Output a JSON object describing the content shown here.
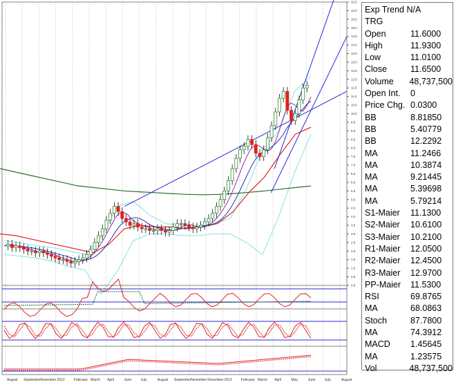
{
  "info_panel": {
    "title": "Exp Trend N/A",
    "symbol": "TRG",
    "rows": [
      {
        "label": "Open",
        "value": "11.6000"
      },
      {
        "label": "High",
        "value": "11.9300"
      },
      {
        "label": "Low",
        "value": "11.0100"
      },
      {
        "label": "Close",
        "value": "11.6500"
      },
      {
        "label": "Volume",
        "value": "48,737,500"
      },
      {
        "label": "Open Int.",
        "value": "0"
      },
      {
        "label": "Price Chg.",
        "value": "0.0300"
      },
      {
        "label": "BB",
        "value": "8.81850"
      },
      {
        "label": "BB",
        "value": "5.40779"
      },
      {
        "label": "BB",
        "value": "12.2292"
      },
      {
        "label": "MA",
        "value": "11.2466"
      },
      {
        "label": "MA",
        "value": "10.3874"
      },
      {
        "label": "MA",
        "value": "9.21445"
      },
      {
        "label": "MA",
        "value": "5.39698"
      },
      {
        "label": "MA",
        "value": "5.79214"
      },
      {
        "label": "S1-Maier",
        "value": "11.1300"
      },
      {
        "label": "S2-Maier",
        "value": "10.6100"
      },
      {
        "label": "S3-Maier",
        "value": "10.2100"
      },
      {
        "label": "R1-Maier",
        "value": "12.0500"
      },
      {
        "label": "R2-Maier",
        "value": "12.4500"
      },
      {
        "label": "R3-Maier",
        "value": "12.9700"
      },
      {
        "label": "PP-Maier",
        "value": "11.5300"
      },
      {
        "label": "RSI",
        "value": "69.8765"
      },
      {
        "label": "MA",
        "value": "68.0863"
      },
      {
        "label": "Stoch",
        "value": "87.7800"
      },
      {
        "label": "MA",
        "value": "74.3912"
      },
      {
        "label": "MACD",
        "value": "1.45645"
      },
      {
        "label": "MA",
        "value": "1.23575"
      },
      {
        "label": "Vol",
        "value": "48,737,500"
      }
    ]
  },
  "chart_data": [
    {
      "type": "candlestick",
      "panel": "price",
      "y_ticks": [
        "16.5",
        "16.0",
        "15.5",
        "15.0",
        "14.5",
        "14.0",
        "13.5",
        "13.0",
        "12.5",
        "12.0",
        "11.5",
        "11.0",
        "10.5",
        "10.0",
        "9.5",
        "9.0",
        "8.5",
        "8.0",
        "7.5",
        "7.0",
        "6.5",
        "6.0",
        "5.5",
        "5.0",
        "4.5",
        "4.0",
        "3.5",
        "3.0",
        "2.5",
        "2.0",
        "1.5",
        "1.0",
        "0.5",
        "0.0"
      ],
      "ylim": [
        0,
        16.5
      ],
      "x_ticks": [
        "August",
        "September",
        "November",
        "2012",
        "February",
        "March",
        "April",
        "June",
        "July",
        "August",
        "September",
        "November",
        "December",
        "2013",
        "February",
        "March",
        "April",
        "May",
        "June",
        "July",
        "August"
      ],
      "closes": [
        2.3,
        2.4,
        2.2,
        2.3,
        2.2,
        2.1,
        2.0,
        2.0,
        1.9,
        2.0,
        1.9,
        1.8,
        1.7,
        1.6,
        1.5,
        1.5,
        1.4,
        1.3,
        1.4,
        1.5,
        1.6,
        1.8,
        2.1,
        2.5,
        2.9,
        3.3,
        3.8,
        4.2,
        4.6,
        4.3,
        3.9,
        3.7,
        3.5,
        3.6,
        3.4,
        3.3,
        3.3,
        3.2,
        3.2,
        3.3,
        3.2,
        3.1,
        3.2,
        3.4,
        3.6,
        3.6,
        3.5,
        3.4,
        3.3,
        3.4,
        3.5,
        3.7,
        3.9,
        4.2,
        4.6,
        5.0,
        5.5,
        6.1,
        6.8,
        7.4,
        7.9,
        8.1,
        8.5,
        8.2,
        7.7,
        7.5,
        7.9,
        8.6,
        9.3,
        10.1,
        10.9,
        11.3,
        10.2,
        9.6,
        10.0,
        10.8,
        11.5,
        11.65
      ],
      "ma_long": [
        6.8,
        6.6,
        6.4,
        6.2,
        6.0,
        5.8,
        5.7,
        5.6,
        5.5,
        5.45,
        5.4,
        5.35,
        5.3,
        5.28,
        5.3,
        5.35,
        5.42,
        5.5,
        5.6,
        5.7,
        5.79
      ],
      "ma_mid": [
        3.0,
        2.9,
        2.7,
        2.5,
        2.3,
        2.1,
        1.9,
        2.4,
        3.3,
        3.5,
        3.4,
        3.4,
        3.3,
        3.4,
        3.6,
        4.3,
        5.4,
        6.3,
        7.6,
        8.8,
        9.21
      ],
      "bb_upper": [
        2.6,
        2.5,
        2.3,
        2.2,
        2.0,
        1.8,
        2.8,
        4.6,
        4.9,
        4.1,
        3.6,
        3.5,
        3.5,
        3.6,
        3.9,
        5.6,
        7.9,
        9.0,
        11.3,
        12.2
      ],
      "bb_lower": [
        1.8,
        1.7,
        1.6,
        1.4,
        1.1,
        0.9,
        -0.5,
        0.8,
        2.6,
        3.0,
        3.0,
        2.9,
        2.9,
        3.0,
        3.0,
        2.5,
        1.8,
        4.0,
        6.6,
        8.8
      ],
      "trendlines": [
        {
          "x0_pct": 0.355,
          "y0": 4.6,
          "x1_pct": 1.0,
          "y1": 11.3
        },
        {
          "x0_pct": 0.79,
          "y0": 6.8,
          "x1_pct": 0.965,
          "y1": 16.8
        },
        {
          "x0_pct": 0.78,
          "y0": 5.4,
          "x1_pct": 1.0,
          "y1": 14.5
        }
      ]
    },
    {
      "type": "line",
      "panel": "rsi",
      "series": [
        {
          "name": "RSI",
          "value": 69.8765
        },
        {
          "name": "MA",
          "value": 68.0863
        }
      ],
      "levels": [
        70,
        30
      ]
    },
    {
      "type": "line",
      "panel": "stoch",
      "series": [
        {
          "name": "Stoch",
          "value": 87.78
        },
        {
          "name": "MA",
          "value": 74.3912
        }
      ],
      "levels": [
        80,
        20
      ]
    },
    {
      "type": "line",
      "panel": "macd",
      "series": [
        {
          "name": "MACD",
          "value": 1.45645
        },
        {
          "name": "MA",
          "value": 1.23575
        }
      ]
    }
  ],
  "colors": {
    "up": "#2e8b2e",
    "down": "#e02020",
    "ma_long": "#2f6b2f",
    "ma_mid": "#e02020",
    "bb": "#88e0e0",
    "trend": "#2828d8",
    "ma_fast": "#9a2a9a",
    "ma_ref": "#2233aa"
  }
}
